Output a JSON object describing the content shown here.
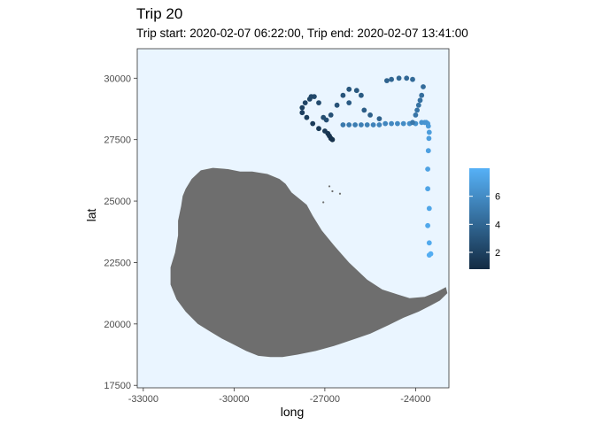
{
  "chart_data": {
    "type": "scatter",
    "title": "Trip 20",
    "subtitle": "Trip start: 2020-02-07 06:22:00, Trip end: 2020-02-07 13:41:00",
    "xlabel": "long",
    "ylabel": "lat",
    "xlim": [
      -33200,
      -22900
    ],
    "ylim": [
      17400,
      31200
    ],
    "x_ticks": [
      -33000,
      -30000,
      -27000,
      -24000
    ],
    "x_tick_labels": [
      "-33000",
      "-30000",
      "-27000",
      "-24000"
    ],
    "y_ticks": [
      17500,
      20000,
      22500,
      25000,
      27500,
      30000
    ],
    "y_tick_labels": [
      "17500",
      "20000",
      "22500",
      "25000",
      "27500",
      "30000"
    ],
    "panel_background": "#eaf5ff",
    "grid": false,
    "color_scale": {
      "low_color": "#132b43",
      "high_color": "#56b1f7",
      "range": [
        0.8,
        8.0
      ],
      "breaks": [
        2,
        4,
        6
      ],
      "break_labels": [
        "2",
        "4",
        "6"
      ],
      "legend_position": "right"
    },
    "island": {
      "fill": "#6e6e6e",
      "outline": [
        [
          -31600,
          25500
        ],
        [
          -31400,
          25900
        ],
        [
          -31100,
          26250
        ],
        [
          -30700,
          26350
        ],
        [
          -30200,
          26300
        ],
        [
          -29800,
          26200
        ],
        [
          -29400,
          26200
        ],
        [
          -28900,
          26100
        ],
        [
          -28500,
          25900
        ],
        [
          -28300,
          25700
        ],
        [
          -28100,
          25350
        ],
        [
          -27850,
          25100
        ],
        [
          -27600,
          24850
        ],
        [
          -27400,
          24400
        ],
        [
          -27100,
          23800
        ],
        [
          -26700,
          23200
        ],
        [
          -26200,
          22500
        ],
        [
          -25600,
          21800
        ],
        [
          -25100,
          21400
        ],
        [
          -24600,
          21200
        ],
        [
          -24200,
          21050
        ],
        [
          -23700,
          21100
        ],
        [
          -23300,
          21300
        ],
        [
          -23000,
          21500
        ],
        [
          -22950,
          21250
        ],
        [
          -23200,
          20950
        ],
        [
          -23500,
          20750
        ],
        [
          -23900,
          20500
        ],
        [
          -24400,
          20250
        ],
        [
          -24900,
          19950
        ],
        [
          -25500,
          19600
        ],
        [
          -26100,
          19350
        ],
        [
          -26700,
          19100
        ],
        [
          -27300,
          18900
        ],
        [
          -27900,
          18750
        ],
        [
          -28400,
          18650
        ],
        [
          -28800,
          18650
        ],
        [
          -29200,
          18700
        ],
        [
          -29600,
          18900
        ],
        [
          -30000,
          19150
        ],
        [
          -30400,
          19400
        ],
        [
          -30800,
          19700
        ],
        [
          -31200,
          20000
        ],
        [
          -31600,
          20500
        ],
        [
          -31900,
          21000
        ],
        [
          -32100,
          21600
        ],
        [
          -32100,
          22300
        ],
        [
          -31950,
          22900
        ],
        [
          -31850,
          23600
        ],
        [
          -31850,
          24200
        ],
        [
          -31750,
          24800
        ],
        [
          -31700,
          25200
        ]
      ]
    },
    "islets": [
      [
        -26850,
        25600
      ],
      [
        -26750,
        25400
      ],
      [
        -26500,
        25300
      ],
      [
        -27050,
        24950
      ]
    ],
    "series": [
      {
        "x": [
          -23550,
          -23500,
          -23550,
          -23600,
          -23550,
          -23600,
          -23600,
          -23580,
          -23560,
          -23550,
          -23580,
          -23600,
          -23650,
          -23700,
          -23800,
          -24000,
          -24200,
          -24400,
          -24600,
          -24800,
          -25000,
          -25200,
          -25400,
          -25600,
          -25800,
          -26000,
          -26200,
          -26400,
          -24100,
          -24000,
          -23950,
          -23900,
          -23850,
          -23800,
          -23750,
          -24100,
          -24300,
          -24550,
          -24800,
          -24950,
          -25200,
          -25500,
          -25700,
          -26200,
          -25800,
          -25950,
          -26200,
          -26400,
          -26600,
          -26800,
          -26950,
          -27050,
          -27200,
          -27350,
          -27450,
          -27500,
          -27650,
          -27750,
          -27750,
          -27600,
          -27400,
          -27200,
          -27000,
          -26900,
          -26850,
          -26800,
          -26750
        ],
        "y": [
          22800,
          22850,
          23300,
          24000,
          24700,
          25500,
          26300,
          27050,
          27550,
          27800,
          28050,
          28150,
          28200,
          28200,
          28200,
          28150,
          28150,
          28150,
          28150,
          28150,
          28150,
          28100,
          28100,
          28100,
          28100,
          28100,
          28100,
          28100,
          28200,
          28500,
          28700,
          28900,
          29100,
          29300,
          29650,
          29950,
          30000,
          30000,
          29950,
          29900,
          28350,
          28500,
          28700,
          29000,
          29300,
          29500,
          29550,
          29300,
          28900,
          28500,
          28300,
          28400,
          29000,
          29250,
          29250,
          29150,
          29000,
          28800,
          28600,
          28400,
          28150,
          27950,
          27850,
          27750,
          27650,
          27550,
          27500
        ],
        "color_value": [
          7.8,
          7.8,
          7.6,
          7.5,
          7.4,
          7.3,
          7.2,
          7.1,
          7.0,
          6.9,
          6.8,
          6.7,
          6.6,
          6.5,
          6.4,
          6.2,
          6.1,
          6.0,
          5.9,
          5.8,
          5.7,
          5.6,
          5.5,
          5.4,
          5.3,
          5.2,
          5.1,
          5.0,
          4.9,
          4.8,
          4.7,
          4.6,
          4.5,
          4.4,
          4.3,
          4.2,
          4.1,
          4.0,
          3.9,
          3.8,
          3.7,
          3.6,
          3.5,
          3.4,
          3.3,
          3.2,
          3.1,
          3.0,
          2.9,
          2.8,
          2.7,
          2.6,
          2.5,
          2.4,
          2.3,
          2.2,
          2.1,
          2.0,
          1.9,
          1.8,
          1.7,
          1.6,
          1.5,
          1.4,
          1.3,
          1.2,
          1.1
        ]
      }
    ]
  }
}
